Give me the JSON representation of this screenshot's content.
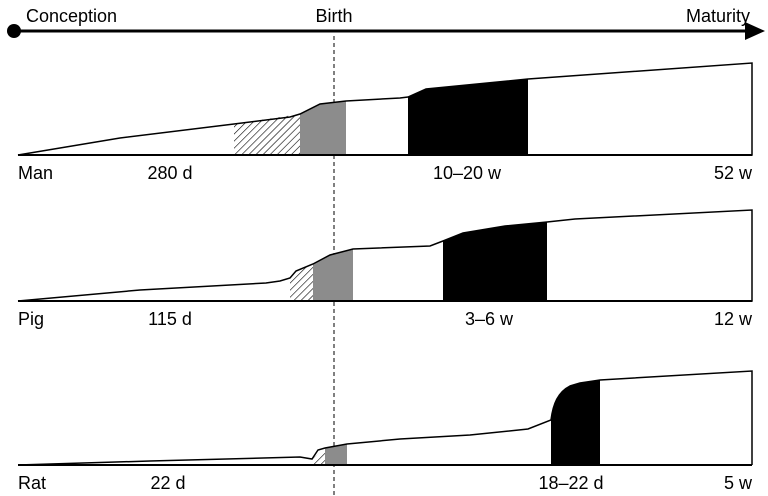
{
  "timeline": {
    "start_label": "Conception",
    "middle_label": "Birth",
    "end_label": "Maturity"
  },
  "species": [
    {
      "name": "Man",
      "gestation": "280 d",
      "growth_spurt": "10–20 w",
      "maturity": "52 w"
    },
    {
      "name": "Pig",
      "gestation": "115 d",
      "growth_spurt": "3–6 w",
      "maturity": "12 w"
    },
    {
      "name": "Rat",
      "gestation": "22 d",
      "growth_spurt": "18–22 d",
      "maturity": "5 w"
    }
  ],
  "colors": {
    "line": "#000000",
    "prenatal_hatched": "#000000",
    "perinatal_band": "#8c8c8c",
    "growth_spurt_band": "#000000"
  }
}
